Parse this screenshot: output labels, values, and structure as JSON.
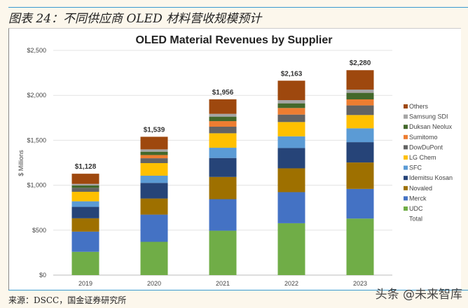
{
  "figure_title": "图表 24：不同供应商 OLED 材料营收规模预计",
  "source": "来源：DSCC，国金证券研究所",
  "watermark": "头条 @未来智库",
  "chart_data": {
    "type": "bar",
    "stacked": true,
    "title": "OLED Material Revenues by Supplier",
    "ylabel": "$ Millions",
    "xlabel": "",
    "ylim": [
      0,
      2500
    ],
    "yticks": [
      "$0",
      "$500",
      "$1,000",
      "$1,500",
      "$2,000",
      "$2,500"
    ],
    "grid": true,
    "legend_position": "right",
    "categories": [
      "2019",
      "2020",
      "2021",
      "2022",
      "2023"
    ],
    "totals": [
      1128,
      1539,
      1956,
      2163,
      2280
    ],
    "total_labels": [
      "$1,128",
      "$1,539",
      "$1,956",
      "$2,163",
      "$2,280"
    ],
    "series": [
      {
        "name": "UDC",
        "color": "#70ad47",
        "values": [
          259,
          370,
          494,
          577,
          629
        ]
      },
      {
        "name": "Merck",
        "color": "#4472c4",
        "values": [
          225,
          303,
          351,
          346,
          330
        ]
      },
      {
        "name": "Novaled",
        "color": "#9e7000",
        "values": [
          148,
          179,
          247,
          265,
          294
        ]
      },
      {
        "name": "Idemitsu Kosan",
        "color": "#264478",
        "values": [
          127,
          174,
          211,
          226,
          226
        ]
      },
      {
        "name": "SFC",
        "color": "#5b9bd5",
        "values": [
          62,
          80,
          114,
          130,
          154
        ]
      },
      {
        "name": "LG Chem",
        "color": "#ffc000",
        "values": [
          106,
          140,
          161,
          159,
          148
        ]
      },
      {
        "name": "DowDuPont",
        "color": "#636363",
        "values": [
          44,
          54,
          73,
          83,
          107
        ]
      },
      {
        "name": "Sumitomo",
        "color": "#ed7d31",
        "values": [
          0,
          36,
          62,
          73,
          67
        ]
      },
      {
        "name": "Duksan Neolux",
        "color": "#43682b",
        "values": [
          26,
          37,
          50,
          52,
          73
        ]
      },
      {
        "name": "Samsung SDI",
        "color": "#a5a5a5",
        "values": [
          18,
          26,
          31,
          36,
          36
        ]
      },
      {
        "name": "Others",
        "color": "#9e480e",
        "values": [
          113,
          140,
          162,
          216,
          216
        ]
      }
    ],
    "legend_extra": "Total"
  }
}
